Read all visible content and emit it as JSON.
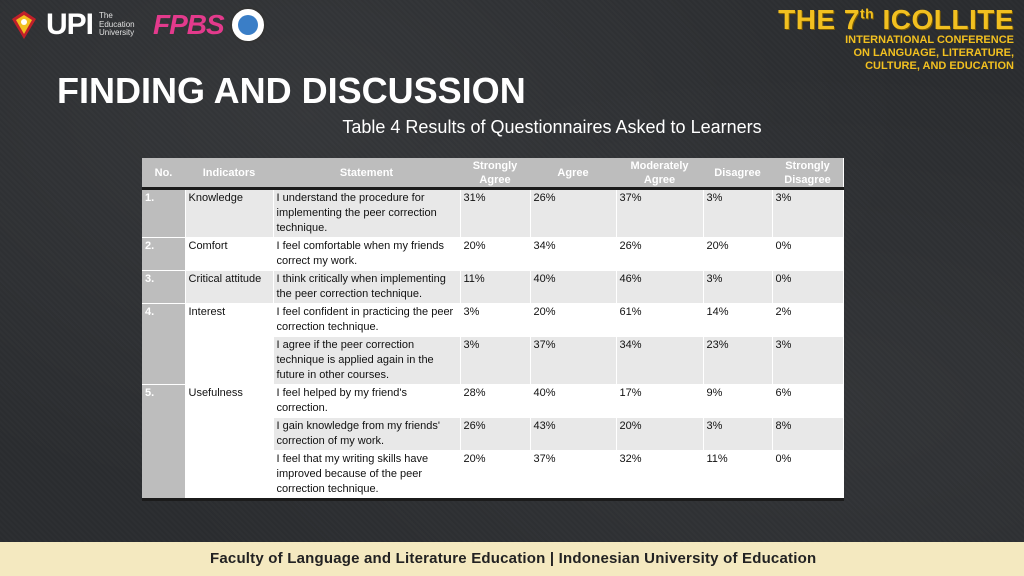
{
  "header": {
    "upi_logo": "UPI",
    "upi_subtitle": "The Education University",
    "fpbs_logo": "FPBS",
    "conference_title": "THE 7",
    "conference_sup": "th",
    "conference_name": "ICOLLITE",
    "conference_lines": [
      "INTERNATIONAL CONFERENCE",
      "ON LANGUAGE, LITERATURE,",
      "CULTURE, AND EDUCATION"
    ]
  },
  "slide": {
    "title": "FINDING AND DISCUSSION",
    "caption": "Table 4 Results of Questionnaires Asked to Learners"
  },
  "table": {
    "headers": [
      "No.",
      "Indicators",
      "Statement",
      "Strongly Agree",
      "Agree",
      "Moderately Agree",
      "Disagree",
      "Strongly Disagree"
    ],
    "rows": [
      {
        "no": "1.",
        "indicator": "Knowledge",
        "statement": "I understand the procedure for implementing the peer correction technique.",
        "values": [
          "31%",
          "26%",
          "37%",
          "3%",
          "3%"
        ]
      },
      {
        "no": "2.",
        "indicator": "Comfort",
        "statement": "I feel comfortable when my friends correct my work.",
        "values": [
          "20%",
          "34%",
          "26%",
          "20%",
          "0%"
        ]
      },
      {
        "no": "3.",
        "indicator": "Critical attitude",
        "statement": "I think critically when implementing the peer correction technique.",
        "values": [
          "11%",
          "40%",
          "46%",
          "3%",
          "0%"
        ]
      },
      {
        "no": "4.",
        "indicator": "Interest",
        "statement": "I feel confident in practicing the peer correction technique.",
        "values": [
          "3%",
          "20%",
          "61%",
          "14%",
          "2%"
        ]
      },
      {
        "no": "",
        "indicator": "",
        "statement": "I agree if the peer correction technique is applied again in the future in other courses.",
        "values": [
          "3%",
          "37%",
          "34%",
          "23%",
          "3%"
        ]
      },
      {
        "no": "5.",
        "indicator": "Usefulness",
        "statement": "I feel helped by my friend's correction.",
        "values": [
          "28%",
          "40%",
          "17%",
          "9%",
          "6%"
        ]
      },
      {
        "no": "",
        "indicator": "",
        "statement": "I gain knowledge from my friends' correction of my work.",
        "values": [
          "26%",
          "43%",
          "20%",
          "3%",
          "8%"
        ]
      },
      {
        "no": "",
        "indicator": "",
        "statement": "I feel that my writing skills have improved because of the peer correction technique.",
        "values": [
          "20%",
          "37%",
          "32%",
          "11%",
          "0%"
        ]
      }
    ]
  },
  "footer": {
    "text": "Faculty of Language and Literature Education | Indonesian University of Education"
  }
}
